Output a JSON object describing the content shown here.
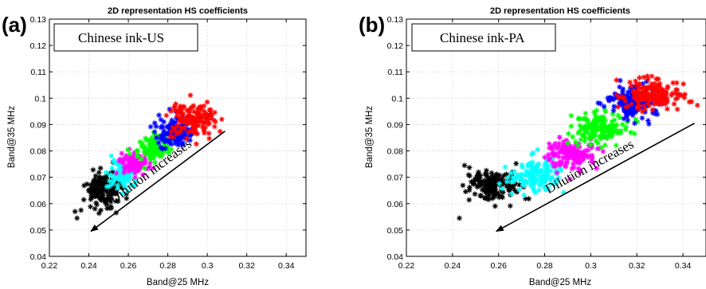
{
  "figure": {
    "background": "#ffffff"
  },
  "chart_data": [
    {
      "type": "scatter",
      "panel_label": "(a)",
      "title": "2D representation HS coefficients",
      "legend_text": "Chinese ink-US",
      "xlabel": "Band@25 MHz",
      "ylabel": "Band@35 MHz",
      "xlim": [
        0.22,
        0.35
      ],
      "ylim": [
        0.04,
        0.13
      ],
      "xticks": [
        0.22,
        0.24,
        0.26,
        0.28,
        0.3,
        0.32,
        0.34
      ],
      "xtick_labels": [
        "0.22",
        "0.24",
        "0.26",
        "0.28",
        "0.3",
        "0.32",
        "0.34"
      ],
      "yticks": [
        0.04,
        0.05,
        0.06,
        0.07,
        0.08,
        0.09,
        0.1,
        0.11,
        0.12,
        0.13
      ],
      "ytick_labels": [
        "0.04",
        "0.05",
        "0.06",
        "0.07",
        "0.08",
        "0.09",
        "0.1",
        "0.11",
        "0.12",
        "0.13"
      ],
      "grid": true,
      "marker": "*",
      "annotation": {
        "text": "Dilution increases",
        "arrow_from": [
          0.309,
          0.0875
        ],
        "arrow_to": [
          0.241,
          0.0495
        ]
      },
      "series": [
        {
          "color": "#000000",
          "center": [
            0.247,
            0.0655
          ],
          "spread": [
            0.0045,
            0.0035
          ],
          "count": 150,
          "points": [
            [
              0.234,
              0.0545
            ],
            [
              0.233,
              0.057
            ],
            [
              0.236,
              0.0575
            ]
          ]
        },
        {
          "color": "#00ffff",
          "center": [
            0.256,
            0.0705
          ],
          "spread": [
            0.0035,
            0.0025
          ],
          "count": 90,
          "points": []
        },
        {
          "color": "#ff00ff",
          "center": [
            0.263,
            0.0755
          ],
          "spread": [
            0.0035,
            0.0022
          ],
          "count": 90,
          "points": []
        },
        {
          "color": "#00ff00",
          "center": [
            0.272,
            0.0805
          ],
          "spread": [
            0.004,
            0.0025
          ],
          "count": 110,
          "points": []
        },
        {
          "color": "#0000ff",
          "center": [
            0.284,
            0.087
          ],
          "spread": [
            0.0045,
            0.003
          ],
          "count": 140,
          "points": []
        },
        {
          "color": "#ff0000",
          "center": [
            0.293,
            0.0915
          ],
          "spread": [
            0.0055,
            0.003
          ],
          "count": 150,
          "points": []
        }
      ]
    },
    {
      "type": "scatter",
      "panel_label": "(b)",
      "title": "2D representation HS coefficients",
      "legend_text": "Chinese ink-PA",
      "xlabel": "Band@25 MHz",
      "ylabel": "Band@35 MHz",
      "xlim": [
        0.22,
        0.35
      ],
      "ylim": [
        0.04,
        0.13
      ],
      "xticks": [
        0.22,
        0.24,
        0.26,
        0.28,
        0.3,
        0.32,
        0.34
      ],
      "xtick_labels": [
        "0.22",
        "0.24",
        "0.26",
        "0.28",
        "0.3",
        "0.32",
        "0.34"
      ],
      "yticks": [
        0.04,
        0.05,
        0.06,
        0.07,
        0.08,
        0.09,
        0.1,
        0.11,
        0.12,
        0.13
      ],
      "ytick_labels": [
        "0.04",
        "0.05",
        "0.06",
        "0.07",
        "0.08",
        "0.09",
        "0.1",
        "0.11",
        "0.12",
        "0.13"
      ],
      "grid": true,
      "marker": "*",
      "annotation": {
        "text": "Dilution increases",
        "arrow_from": [
          0.345,
          0.0905
        ],
        "arrow_to": [
          0.259,
          0.0495
        ]
      },
      "series": [
        {
          "color": "#000000",
          "center": [
            0.258,
            0.0665
          ],
          "spread": [
            0.0055,
            0.003
          ],
          "count": 170,
          "points": [
            [
              0.243,
              0.0545
            ]
          ]
        },
        {
          "color": "#00ffff",
          "center": [
            0.276,
            0.0705
          ],
          "spread": [
            0.0055,
            0.003
          ],
          "count": 150,
          "points": []
        },
        {
          "color": "#ff00ff",
          "center": [
            0.291,
            0.079
          ],
          "spread": [
            0.0055,
            0.003
          ],
          "count": 150,
          "points": []
        },
        {
          "color": "#00ff00",
          "center": [
            0.304,
            0.0885
          ],
          "spread": [
            0.0055,
            0.003
          ],
          "count": 150,
          "points": []
        },
        {
          "color": "#0000ff",
          "center": [
            0.318,
            0.0985
          ],
          "spread": [
            0.0055,
            0.003
          ],
          "count": 160,
          "points": []
        },
        {
          "color": "#ff0000",
          "center": [
            0.327,
            0.1015
          ],
          "spread": [
            0.0065,
            0.003
          ],
          "count": 170,
          "points": []
        }
      ]
    }
  ]
}
